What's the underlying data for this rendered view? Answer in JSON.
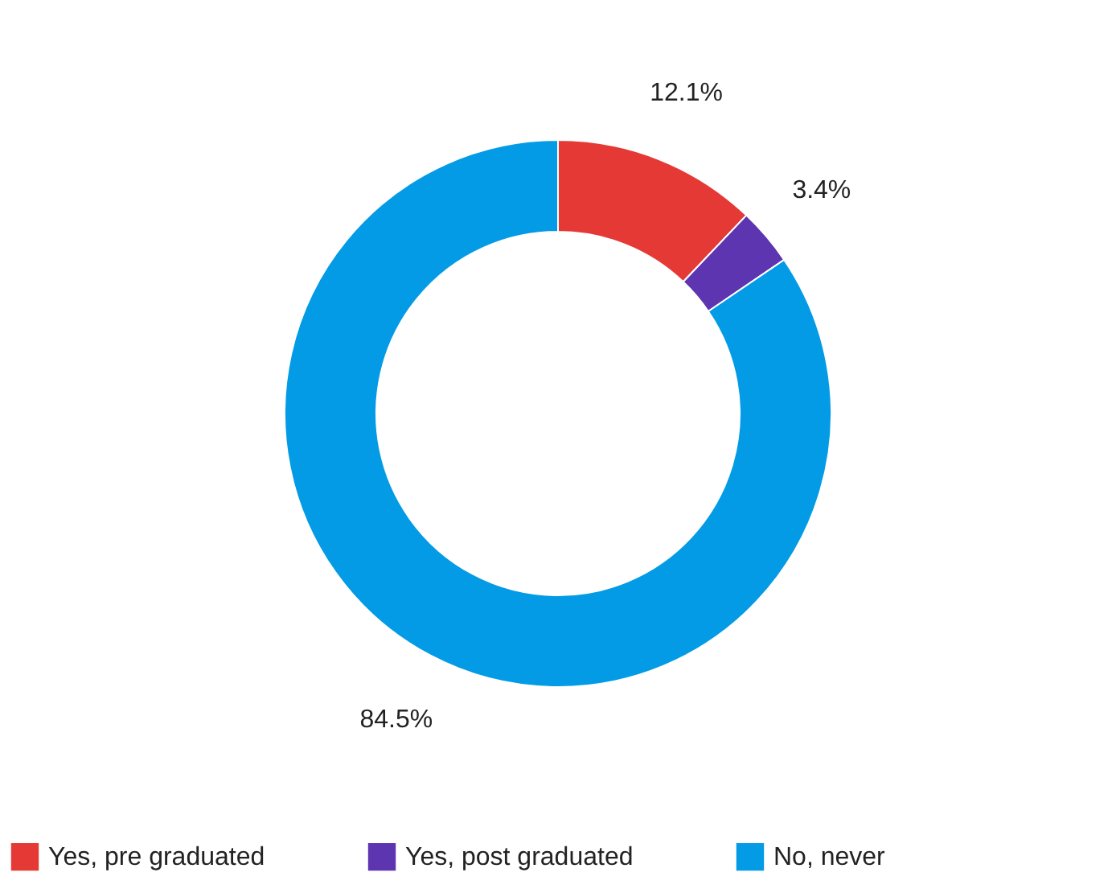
{
  "chart_data": {
    "type": "donut",
    "categories": [
      "Yes, pre graduated",
      "Yes, post graduated",
      "No, never"
    ],
    "values": [
      12.1,
      3.4,
      84.5
    ],
    "colors": [
      "#e53935",
      "#5e35b1",
      "#039be5"
    ],
    "value_labels": [
      "12.1%",
      "3.4%",
      "84.5%"
    ],
    "legend": "bottom"
  }
}
